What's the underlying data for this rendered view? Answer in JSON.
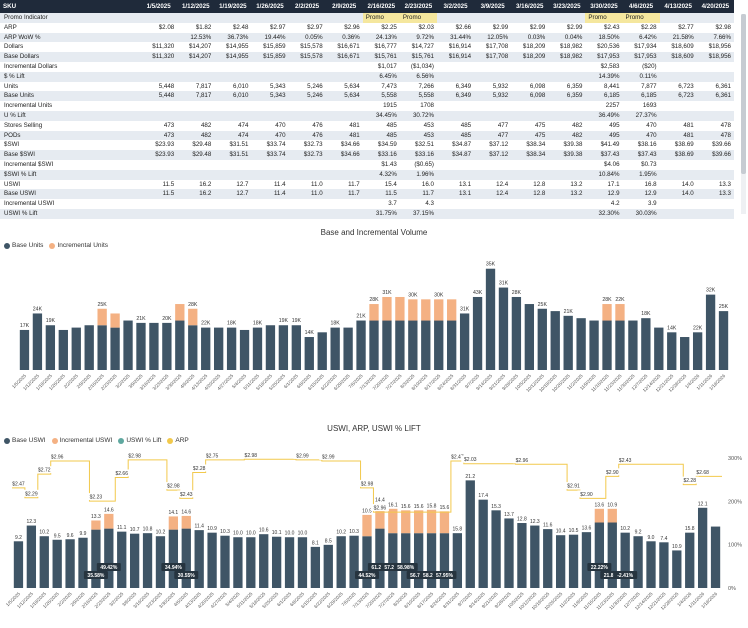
{
  "table": {
    "headers": [
      "SKU",
      "1/5/2025",
      "1/12/2025",
      "1/19/2025",
      "1/26/2025",
      "2/2/2025",
      "2/9/2025",
      "2/16/2025",
      "2/23/2025",
      "3/2/2025",
      "3/9/2025",
      "3/16/2025",
      "3/23/2025",
      "3/30/2025",
      "4/6/2025",
      "4/13/2025",
      "4/20/2025"
    ],
    "rows": [
      {
        "label": "Promo Indicator",
        "values": [
          "",
          "",
          "",
          "",
          "",
          "",
          "Promo",
          "Promo",
          "",
          "",
          "",
          "",
          "Promo",
          "Promo",
          "",
          ""
        ],
        "promo": true
      },
      {
        "label": "ARP",
        "values": [
          "$2.08",
          "$1.82",
          "$2.48",
          "$2.97",
          "$2.97",
          "$2.96",
          "$2.25",
          "$2.03",
          "$2.66",
          "$2.99",
          "$2.99",
          "$2.99",
          "$2.43",
          "$2.28",
          "$2.77",
          "$2.98"
        ]
      },
      {
        "label": "ARP WoW %",
        "values": [
          "",
          "12.53%",
          "36.73%",
          "19.44%",
          "0.05%",
          "0.36%",
          "24.13%",
          "9.72%",
          "31.44%",
          "12.05%",
          "0.03%",
          "0.04%",
          "18.50%",
          "6.42%",
          "21.58%",
          "7.66%"
        ]
      },
      {
        "label": "Dollars",
        "values": [
          "$11,320",
          "$14,207",
          "$14,955",
          "$15,859",
          "$15,578",
          "$16,671",
          "$16,777",
          "$14,727",
          "$16,914",
          "$17,708",
          "$18,209",
          "$18,982",
          "$20,536",
          "$17,934",
          "$18,609",
          "$18,956"
        ]
      },
      {
        "label": "Base Dollars",
        "values": [
          "$11,320",
          "$14,207",
          "$14,955",
          "$15,859",
          "$15,578",
          "$16,671",
          "$15,761",
          "$15,761",
          "$16,914",
          "$17,708",
          "$18,209",
          "$18,982",
          "$17,953",
          "$17,953",
          "$18,609",
          "$18,956"
        ]
      },
      {
        "label": "Incremental Dollars",
        "values": [
          "",
          "",
          "",
          "",
          "",
          "",
          "$1,017",
          "($1,034)",
          "",
          "",
          "",
          "",
          "$2,583",
          "($20)",
          "",
          ""
        ]
      },
      {
        "label": "$ % Lift",
        "values": [
          "",
          "",
          "",
          "",
          "",
          "",
          "6.45%",
          "6.56%",
          "",
          "",
          "",
          "",
          "14.39%",
          "0.11%",
          "",
          ""
        ]
      },
      {
        "label": "Units",
        "values": [
          "5,448",
          "7,817",
          "6,010",
          "5,343",
          "5,246",
          "5,634",
          "7,473",
          "7,266",
          "6,349",
          "5,932",
          "6,098",
          "6,359",
          "8,441",
          "7,877",
          "6,723",
          "6,361"
        ]
      },
      {
        "label": "Base Units",
        "values": [
          "5,448",
          "7,817",
          "6,010",
          "5,343",
          "5,246",
          "5,634",
          "5,558",
          "5,558",
          "6,349",
          "5,932",
          "6,098",
          "6,359",
          "6,185",
          "6,185",
          "6,723",
          "6,361"
        ]
      },
      {
        "label": "Incremental Units",
        "values": [
          "",
          "",
          "",
          "",
          "",
          "",
          "1915",
          "1708",
          "",
          "",
          "",
          "",
          "2257",
          "1693",
          "",
          ""
        ]
      },
      {
        "label": "U % Lift",
        "values": [
          "",
          "",
          "",
          "",
          "",
          "",
          "34.45%",
          "30.72%",
          "",
          "",
          "",
          "",
          "36.49%",
          "27.37%",
          "",
          ""
        ]
      },
      {
        "label": "Stores Selling",
        "values": [
          "473",
          "482",
          "474",
          "470",
          "476",
          "481",
          "485",
          "453",
          "485",
          "477",
          "475",
          "482",
          "495",
          "470",
          "481",
          "478"
        ]
      },
      {
        "label": "PODs",
        "values": [
          "473",
          "482",
          "474",
          "470",
          "476",
          "481",
          "485",
          "453",
          "485",
          "477",
          "475",
          "482",
          "495",
          "470",
          "481",
          "478"
        ]
      },
      {
        "label": "$SWI",
        "values": [
          "$23.93",
          "$29.48",
          "$31.51",
          "$33.74",
          "$32.73",
          "$34.66",
          "$34.59",
          "$32.51",
          "$34.87",
          "$37.12",
          "$38.34",
          "$39.38",
          "$41.49",
          "$38.16",
          "$38.69",
          "$39.66"
        ]
      },
      {
        "label": "Base $SWI",
        "values": [
          "$23.93",
          "$29.48",
          "$31.51",
          "$33.74",
          "$32.73",
          "$34.66",
          "$33.16",
          "$33.16",
          "$34.87",
          "$37.12",
          "$38.34",
          "$39.38",
          "$37.43",
          "$37.43",
          "$38.69",
          "$39.66"
        ]
      },
      {
        "label": "Incremental $SWI",
        "values": [
          "",
          "",
          "",
          "",
          "",
          "",
          "$1.43",
          "($0.65)",
          "",
          "",
          "",
          "",
          "$4.06",
          "$0.73",
          "",
          ""
        ]
      },
      {
        "label": "$SWI % Lift",
        "values": [
          "",
          "",
          "",
          "",
          "",
          "",
          "4.32%",
          "1.96%",
          "",
          "",
          "",
          "",
          "10.84%",
          "1.95%",
          "",
          ""
        ]
      },
      {
        "label": "USWI",
        "values": [
          "11.5",
          "16.2",
          "12.7",
          "11.4",
          "11.0",
          "11.7",
          "15.4",
          "16.0",
          "13.1",
          "12.4",
          "12.8",
          "13.2",
          "17.1",
          "16.8",
          "14.0",
          "13.3"
        ]
      },
      {
        "label": "Base USWI",
        "values": [
          "11.5",
          "16.2",
          "12.7",
          "11.4",
          "11.0",
          "11.7",
          "11.5",
          "11.7",
          "13.1",
          "12.4",
          "12.8",
          "13.2",
          "12.9",
          "12.9",
          "14.0",
          "13.3"
        ]
      },
      {
        "label": "Incremental USWI",
        "values": [
          "",
          "",
          "",
          "",
          "",
          "",
          "3.7",
          "4.3",
          "",
          "",
          "",
          "",
          "4.2",
          "3.9",
          "",
          ""
        ]
      },
      {
        "label": "USWI % Lift",
        "values": [
          "",
          "",
          "",
          "",
          "",
          "",
          "31.75%",
          "37.15%",
          "",
          "",
          "",
          "",
          "32.30%",
          "30.03%",
          "",
          ""
        ]
      }
    ]
  },
  "colors": {
    "base": "#3f5566",
    "incremental": "#f4b183",
    "arp": "#f2c94c",
    "lift": "#5fa8a0"
  },
  "chart_data": [
    {
      "type": "bar",
      "title": "Base and Incremental Volume",
      "legend": [
        "Base Units",
        "Incremental Units"
      ],
      "ylim": [
        0,
        45
      ],
      "categories": [
        "1/5/2025",
        "1/12/2025",
        "1/19/2025",
        "1/26/2025",
        "2/2/2025",
        "2/9/2025",
        "2/16/2025",
        "2/23/2025",
        "3/2/2025",
        "3/9/2025",
        "3/16/2025",
        "3/23/2025",
        "3/30/2025",
        "4/6/2025",
        "4/13/2025",
        "4/20/2025",
        "4/27/2025",
        "5/4/2025",
        "5/11/2025",
        "5/18/2025",
        "5/25/2025",
        "6/1/2025",
        "6/8/2025",
        "6/15/2025",
        "6/22/2025",
        "6/29/2025",
        "7/6/2025",
        "7/13/2025",
        "7/20/2025",
        "7/27/2025",
        "8/3/2025",
        "8/10/2025",
        "8/17/2025",
        "8/24/2025",
        "8/31/2025",
        "9/7/2025",
        "9/14/2025",
        "9/21/2025",
        "9/28/2025",
        "10/5/2025",
        "10/12/2025",
        "10/19/2025",
        "10/26/2025",
        "11/2/2025",
        "11/9/2025",
        "11/16/2025",
        "11/23/2025",
        "11/30/2025",
        "12/7/2025",
        "12/14/2025",
        "12/21/2025",
        "12/28/2025",
        "1/4/2026",
        "1/11/2026",
        "1/18/2026"
      ],
      "series": [
        {
          "name": "Base Units",
          "values": [
            17,
            24,
            19,
            17,
            18,
            19,
            19,
            18,
            21,
            20,
            20,
            20,
            21,
            19,
            18,
            18,
            18,
            17,
            18,
            19,
            19,
            19,
            14,
            16,
            18,
            18,
            21,
            21,
            21,
            21,
            21,
            21,
            21,
            21,
            24,
            31,
            43,
            35,
            31,
            28,
            26,
            25,
            23,
            22,
            21,
            21,
            21,
            21,
            22,
            18,
            16,
            14,
            16,
            32,
            25
          ]
        },
        {
          "name": "Incremental Units",
          "values": [
            0,
            0,
            0,
            0,
            0,
            0,
            7,
            6,
            0,
            0,
            0,
            0,
            7,
            7,
            0,
            0,
            0,
            0,
            0,
            0,
            0,
            0,
            0,
            0,
            0,
            0,
            0,
            7,
            10,
            10,
            9,
            9,
            9,
            9,
            0,
            0,
            0,
            0,
            0,
            0,
            0,
            0,
            0,
            0,
            0,
            7,
            7,
            0,
            0,
            0,
            0,
            0,
            0,
            0,
            0
          ]
        }
      ],
      "labels": [
        "17K",
        "24K",
        "19K",
        "",
        "",
        "",
        "25K",
        "",
        "",
        "21K",
        "",
        "20K",
        "",
        "28K",
        "22K",
        "",
        "18K",
        "",
        "18K",
        "",
        "19K",
        "19K",
        "14K",
        "",
        "18K",
        "",
        "21K",
        "28K",
        "31K",
        "",
        "30K",
        "",
        "30K",
        "",
        "31K",
        "43K",
        "35K",
        "31K",
        "28K",
        "",
        "25K",
        "",
        "21K",
        "",
        "",
        "28K",
        "22K",
        "",
        "18K",
        "",
        "14K",
        "",
        "22K",
        "32K",
        "25K"
      ]
    },
    {
      "type": "bar",
      "title": "USWI, ARP, USWI % LIFT",
      "legend": [
        "Base USWI",
        "Incremental USWI",
        "USWI % Lift",
        "ARP"
      ],
      "y_right_ticks": [
        "300%",
        "200%",
        "100%",
        "0%"
      ],
      "series": [
        {
          "name": "Base USWI",
          "values": [
            9.2,
            12.3,
            10.2,
            9.5,
            9.6,
            9.9,
            11.5,
            11.7,
            11.1,
            10.7,
            10.8,
            10.2,
            11.5,
            11.7,
            11.4,
            10.9,
            10.3,
            10.0,
            10.0,
            10.6,
            10.1,
            10.0,
            10.0,
            8.1,
            8.5,
            10.2,
            10.3,
            10.2,
            11.7,
            10.8,
            10.8,
            10.8,
            10.8,
            10.8,
            10.8,
            21.2,
            17.4,
            15.3,
            13.7,
            12.8,
            12.3,
            11.6,
            10.4,
            10.5,
            11.0,
            12.9,
            12.9,
            10.9,
            10.2,
            9.2,
            9.0,
            7.4,
            10.9,
            15.8,
            12.1
          ]
        },
        {
          "name": "Incremental USWI",
          "values": [
            0,
            0,
            0,
            0,
            0,
            0,
            1.8,
            2.9,
            0,
            0,
            0,
            0,
            2.6,
            2.5,
            0,
            0,
            0,
            0,
            0,
            0,
            0,
            0,
            0,
            0,
            0,
            0,
            0,
            4.2,
            4.8,
            4.8,
            4.5,
            4.5,
            4.6,
            4.3,
            0,
            0,
            0,
            0,
            0,
            0,
            0,
            0,
            0,
            0,
            0,
            2.7,
            2.7,
            0,
            0,
            0,
            0,
            0,
            0,
            0,
            0
          ]
        },
        {
          "name": "ARP",
          "values": [
            2.47,
            2.29,
            2.72,
            2.96,
            2.96,
            2.96,
            2.23,
            2.23,
            2.66,
            2.98,
            2.98,
            2.98,
            2.43,
            2.28,
            2.75,
            2.98,
            2.98,
            2.98,
            2.99,
            2.99,
            2.99,
            2.99,
            2.98,
            2.98,
            2.96,
            2.96,
            2.96,
            2.47,
            2.03,
            2.03,
            2.03,
            2.03,
            2.03,
            2.03,
            2.96,
            2.91,
            2.91,
            2.91,
            2.91,
            2.9,
            2.9,
            2.9,
            2.9,
            2.43,
            2.28,
            2.28,
            2.68,
            2.9,
            2.9,
            2.9,
            2.9,
            2.9,
            2.53,
            2.68,
            2.68
          ]
        }
      ],
      "bar_labels": [
        "9.2",
        "12.3",
        "10.2",
        "9.5",
        "9.6",
        "9.9",
        "13.3",
        "14.6",
        "11.1",
        "10.7",
        "10.8",
        "10.2",
        "14.1",
        "14.6",
        "11.4",
        "10.9",
        "10.3",
        "10.0",
        "10.0",
        "10.6",
        "10.1",
        "10.0",
        "10.0",
        "8.1",
        "8.5",
        "10.2",
        "10.3",
        "10.9",
        "14.4",
        "16.1",
        "15.6",
        "15.6",
        "15.8",
        "15.6",
        "15.8",
        "21.2",
        "17.4",
        "15.3",
        "13.7",
        "12.8",
        "12.3",
        "11.6",
        "10.4",
        "10.5",
        "13.6",
        "13.6",
        "10.9",
        "10.2",
        "9.2",
        "9.0",
        "7.4",
        "10.9",
        "15.8",
        "12.1",
        ""
      ],
      "arp_labels": [
        "$2.47",
        "$2.29",
        "$2.72",
        "$2.96",
        "$2.23",
        "$2.66",
        "$2.98",
        "$2.98",
        "$2.43",
        "$2.28",
        "$2.75",
        "$2.98",
        "$2.99",
        "$2.99",
        "$2.98",
        "$2.96",
        "$2.47",
        "$2.03",
        "$2.96",
        "$2.91",
        "$2.90",
        "$2.90",
        "$2.43",
        "$2.28",
        "$2.68",
        "$2.90",
        "$2.90",
        "$2.53",
        "$2.68"
      ],
      "lift_labels": [
        {
          "text": "35.58%"
        },
        {
          "text": "49.42%"
        },
        {
          "text": "34.94%"
        },
        {
          "text": "30.55%"
        },
        {
          "text": "61.26%"
        },
        {
          "text": "57.21%"
        },
        {
          "text": "58.98%"
        },
        {
          "text": "44.52%"
        },
        {
          "text": "56.72%"
        },
        {
          "text": "58.24%"
        },
        {
          "text": "57.95%"
        },
        {
          "text": "22.22%"
        },
        {
          "text": "21.88%"
        },
        {
          "text": "-2.41%"
        }
      ]
    }
  ]
}
